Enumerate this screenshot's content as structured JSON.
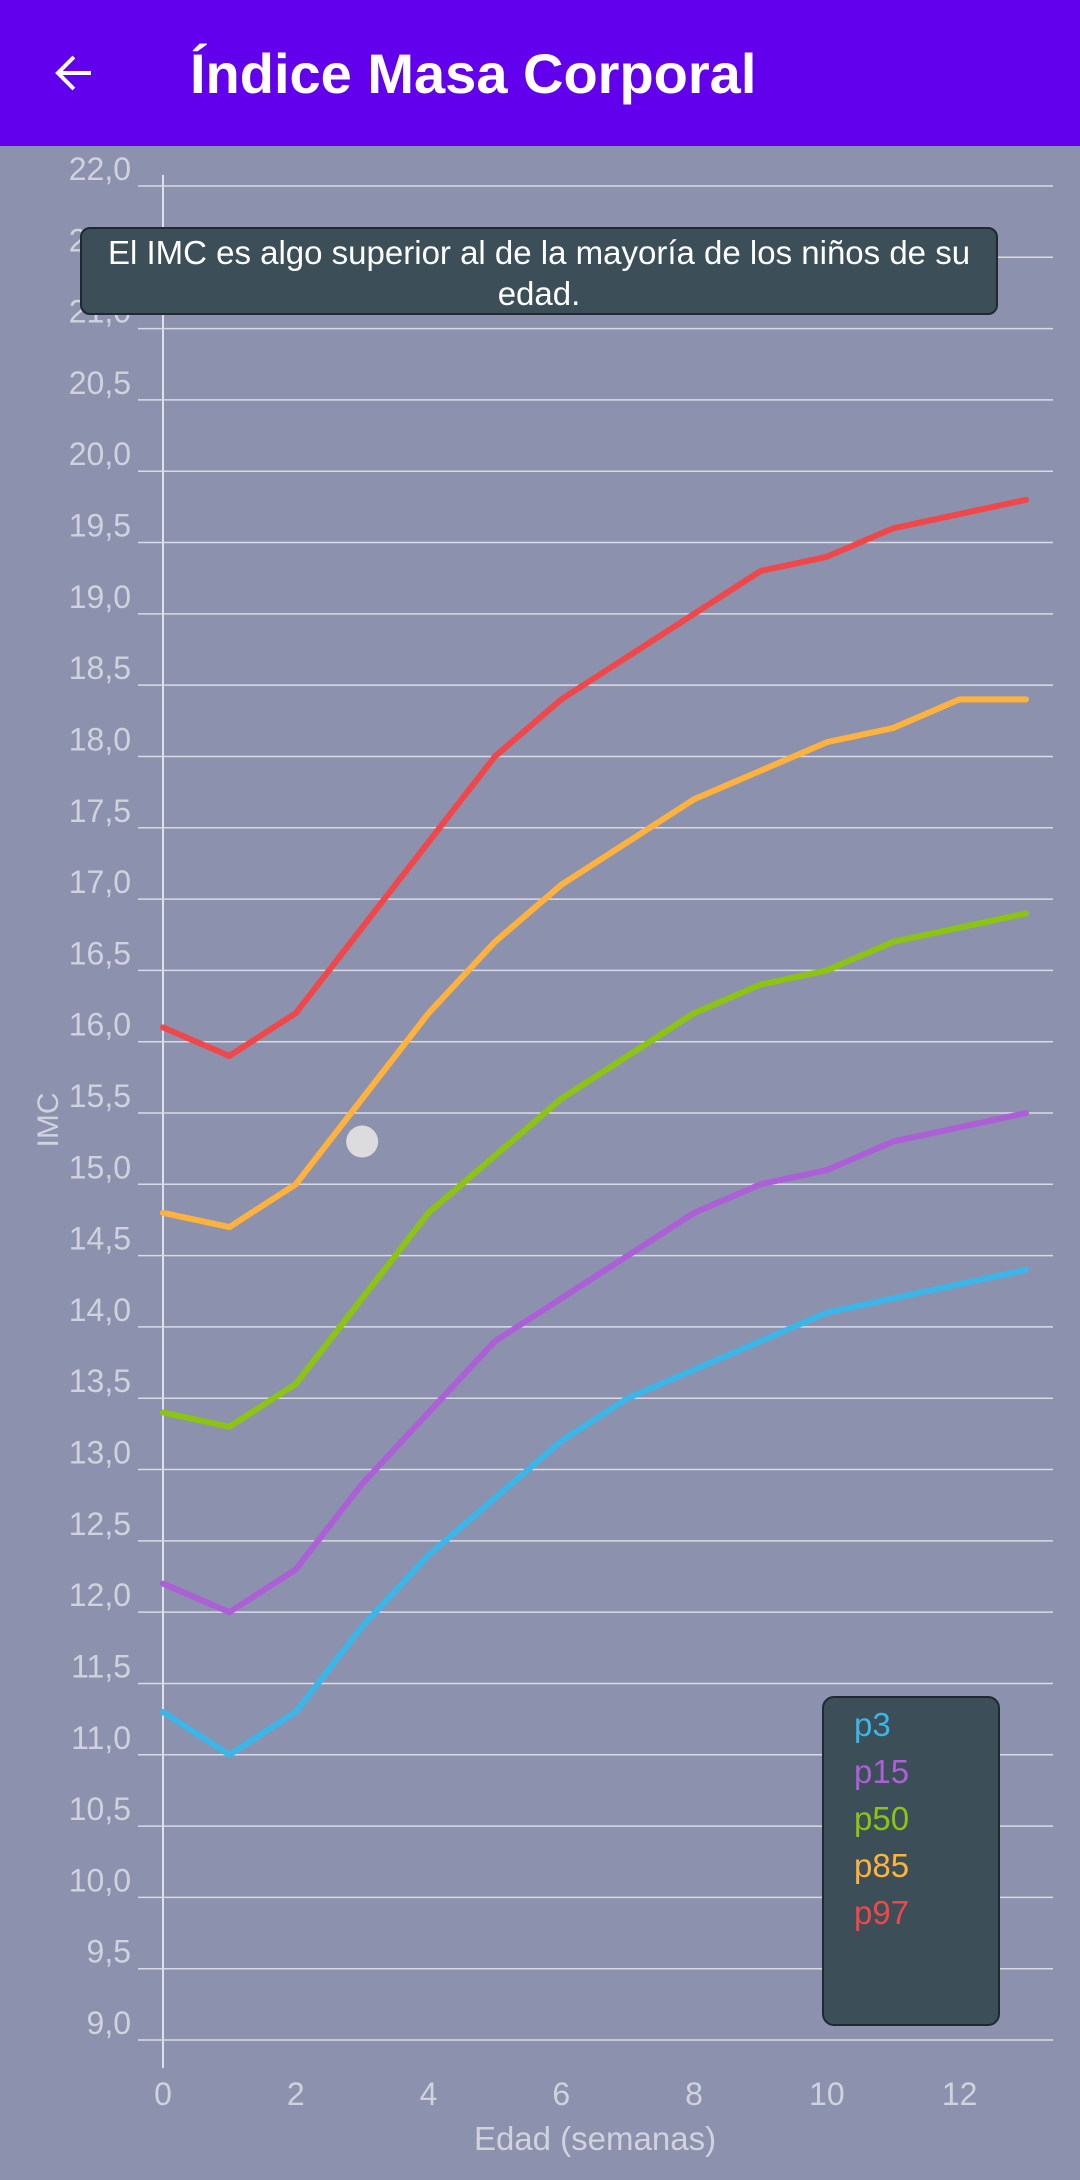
{
  "header": {
    "title": "Índice Masa Corporal",
    "back_icon": "arrow-back-icon"
  },
  "colors": {
    "app_bar": "#6200ee",
    "background": "#8c91ad",
    "grid": "#d9dbe4",
    "label": "#d0d3de",
    "box": "#3c4f58"
  },
  "tooltip": {
    "message": "El IMC es algo superior al de la mayoría de los niños de su edad."
  },
  "chart_data": {
    "type": "line",
    "xlabel": "Edad (semanas)",
    "ylabel": "IMC",
    "xlim": [
      0,
      13
    ],
    "ylim": [
      9.0,
      22.0
    ],
    "grid": true,
    "legend_position": "bottom-right",
    "x_ticks": [
      0,
      2,
      4,
      6,
      8,
      10,
      12
    ],
    "y_ticks": [
      "9,0",
      "9,5",
      "10,0",
      "10,5",
      "11,0",
      "11,5",
      "12,0",
      "12,5",
      "13,0",
      "13,5",
      "14,0",
      "14,5",
      "15,0",
      "15,5",
      "16,0",
      "16,5",
      "17,0",
      "17,5",
      "18,0",
      "18,5",
      "19,0",
      "19,5",
      "20,0",
      "20,5",
      "21,0",
      "21,5",
      "22,0"
    ],
    "x": [
      0,
      1,
      2,
      3,
      4,
      5,
      6,
      7,
      8,
      9,
      10,
      11,
      12,
      13
    ],
    "series": [
      {
        "name": "p3",
        "color": "#3bb6e8",
        "values": [
          11.3,
          11.0,
          11.3,
          11.9,
          12.4,
          12.8,
          13.2,
          13.5,
          13.7,
          13.9,
          14.1,
          14.2,
          14.3,
          14.4
        ]
      },
      {
        "name": "p15",
        "color": "#ac5fd6",
        "values": [
          12.2,
          12.0,
          12.3,
          12.9,
          13.4,
          13.9,
          14.2,
          14.5,
          14.8,
          15.0,
          15.1,
          15.3,
          15.4,
          15.5
        ]
      },
      {
        "name": "p50",
        "color": "#8cc414",
        "values": [
          13.4,
          13.3,
          13.6,
          14.2,
          14.8,
          15.2,
          15.6,
          15.9,
          16.2,
          16.4,
          16.5,
          16.7,
          16.8,
          16.9
        ]
      },
      {
        "name": "p85",
        "color": "#ffb23e",
        "values": [
          14.8,
          14.7,
          15.0,
          15.6,
          16.2,
          16.7,
          17.1,
          17.4,
          17.7,
          17.9,
          18.1,
          18.2,
          18.4,
          18.4
        ]
      },
      {
        "name": "p97",
        "color": "#f0474a",
        "values": [
          16.1,
          15.9,
          16.2,
          16.8,
          17.4,
          18.0,
          18.4,
          18.7,
          19.0,
          19.3,
          19.4,
          19.6,
          19.7,
          19.8
        ]
      }
    ],
    "points": [
      {
        "x": 3,
        "y": 15.3,
        "color": "#dcdcde"
      }
    ]
  }
}
